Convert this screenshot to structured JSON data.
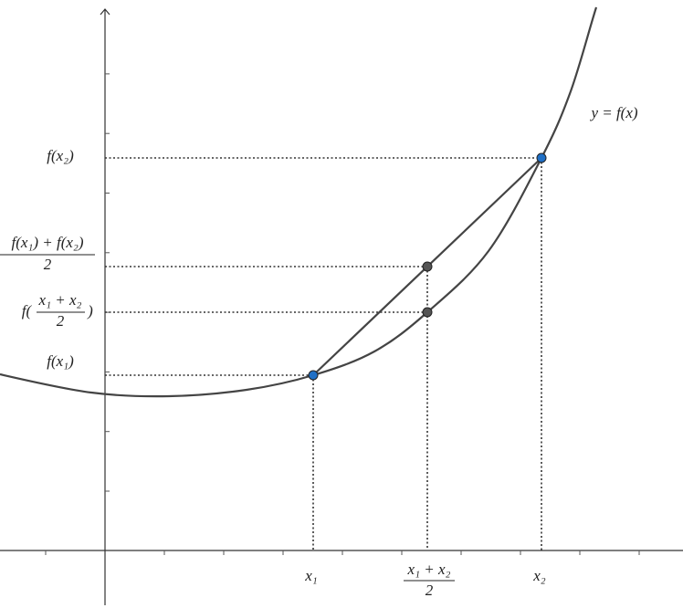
{
  "curve_label": "y = f(x)",
  "y_labels": {
    "f_x2": "f(x₂)",
    "mean_of_values": {
      "numerator": "f(x₁) + f(x₂)",
      "denominator": "2"
    },
    "value_at_mean": {
      "prefix": "f(",
      "numerator": "x₁ + x₂",
      "denominator": "2",
      "suffix": ")"
    },
    "f_x1": "f(x₁)"
  },
  "x_labels": {
    "x1": "x₁",
    "midpoint": {
      "numerator": "x₁ + x₂",
      "denominator": "2"
    },
    "x2": "x₂"
  }
}
